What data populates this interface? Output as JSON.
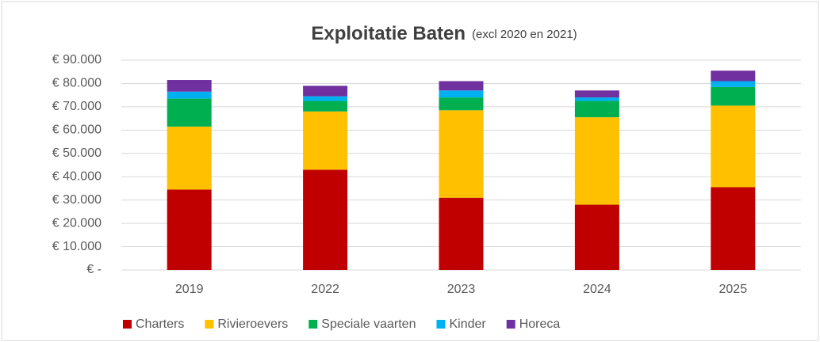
{
  "chart_data": {
    "type": "stacked_bar",
    "title": "Exploitatie Baten",
    "subtitle": "(excl 2020 en 2021)",
    "categories": [
      "2019",
      "2022",
      "2023",
      "2024",
      "2025"
    ],
    "series": [
      {
        "name": "Charters",
        "color": "#c00000",
        "values": [
          34500,
          43000,
          31000,
          28000,
          35500
        ]
      },
      {
        "name": "Rivieroevers",
        "color": "#ffc000",
        "values": [
          27000,
          25000,
          37500,
          37500,
          35000
        ]
      },
      {
        "name": "Speciale vaarten",
        "color": "#00b050",
        "values": [
          12000,
          4500,
          5500,
          7000,
          8000
        ]
      },
      {
        "name": "Kinder",
        "color": "#00b0f0",
        "values": [
          3000,
          2000,
          3000,
          1500,
          2500
        ]
      },
      {
        "name": "Horeca",
        "color": "#7030a0",
        "values": [
          5000,
          4500,
          4000,
          3000,
          4500
        ]
      }
    ],
    "ylim": [
      0,
      90000
    ],
    "yticks": [
      {
        "value": 0,
        "label": "€ -"
      },
      {
        "value": 10000,
        "label": "€ 10.000"
      },
      {
        "value": 20000,
        "label": "€ 20.000"
      },
      {
        "value": 30000,
        "label": "€ 30.000"
      },
      {
        "value": 40000,
        "label": "€ 40.000"
      },
      {
        "value": 50000,
        "label": "€ 50.000"
      },
      {
        "value": 60000,
        "label": "€ 60.000"
      },
      {
        "value": 70000,
        "label": "€ 70.000"
      },
      {
        "value": 80000,
        "label": "€ 80.000"
      },
      {
        "value": 90000,
        "label": "€ 90.000"
      }
    ],
    "grid": true,
    "legend": "bottom"
  }
}
